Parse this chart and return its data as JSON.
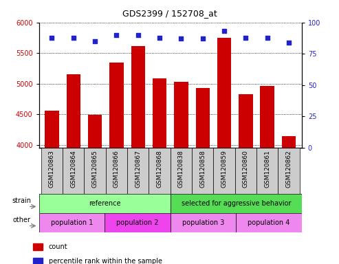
{
  "title": "GDS2399 / 152708_at",
  "samples": [
    "GSM120863",
    "GSM120864",
    "GSM120865",
    "GSM120866",
    "GSM120867",
    "GSM120868",
    "GSM120838",
    "GSM120858",
    "GSM120859",
    "GSM120860",
    "GSM120861",
    "GSM120862"
  ],
  "counts": [
    4560,
    5150,
    4490,
    5340,
    5610,
    5090,
    5030,
    4930,
    5750,
    4830,
    4960,
    4140
  ],
  "percentile_ranks": [
    88,
    88,
    85,
    90,
    90,
    88,
    87,
    87,
    93,
    88,
    88,
    84
  ],
  "ylim_left": [
    3950,
    6000
  ],
  "ylim_right": [
    0,
    100
  ],
  "yticks_left": [
    4000,
    4500,
    5000,
    5500,
    6000
  ],
  "yticks_right": [
    0,
    25,
    50,
    75,
    100
  ],
  "bar_color": "#cc0000",
  "dot_color": "#2222cc",
  "strain_groups": [
    {
      "label": "reference",
      "start": 0,
      "end": 6,
      "color": "#99ff99"
    },
    {
      "label": "selected for aggressive behavior",
      "start": 6,
      "end": 12,
      "color": "#55dd55"
    }
  ],
  "other_groups": [
    {
      "label": "population 1",
      "start": 0,
      "end": 3,
      "color": "#ee88ee"
    },
    {
      "label": "population 2",
      "start": 3,
      "end": 6,
      "color": "#ee44ee"
    },
    {
      "label": "population 3",
      "start": 6,
      "end": 9,
      "color": "#ee88ee"
    },
    {
      "label": "population 4",
      "start": 9,
      "end": 12,
      "color": "#ee88ee"
    }
  ],
  "tick_bg_color": "#cccccc",
  "legend_count_color": "#cc0000",
  "legend_dot_color": "#2222cc"
}
